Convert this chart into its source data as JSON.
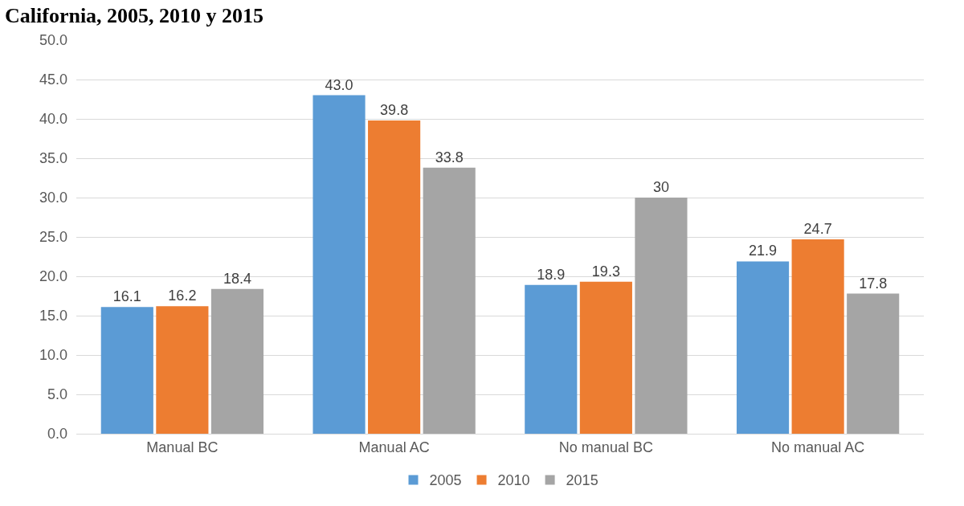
{
  "chart_data": {
    "type": "bar",
    "title": "California, 2005, 2010 y 2015",
    "categories": [
      "Manual BC",
      "Manual AC",
      "No manual BC",
      "No manual AC"
    ],
    "series": [
      {
        "name": "2005",
        "color": "#5b9bd5",
        "values": [
          16.1,
          43.0,
          18.9,
          21.9
        ],
        "value_labels": [
          "16.1",
          "43.0",
          "18.9",
          "21.9"
        ]
      },
      {
        "name": "2010",
        "color": "#ed7d31",
        "values": [
          16.2,
          39.8,
          19.3,
          24.7
        ],
        "value_labels": [
          "16.2",
          "39.8",
          "19.3",
          "24.7"
        ]
      },
      {
        "name": "2015",
        "color": "#a5a5a5",
        "values": [
          18.4,
          33.8,
          30,
          17.8
        ],
        "value_labels": [
          "18.4",
          "33.8",
          "30",
          "17.8"
        ]
      }
    ],
    "ylim": [
      0,
      50
    ],
    "yticks": [
      {
        "value": 0,
        "label": "0.0"
      },
      {
        "value": 5,
        "label": "5.0"
      },
      {
        "value": 10,
        "label": "10.0"
      },
      {
        "value": 15,
        "label": "15.0"
      },
      {
        "value": 20,
        "label": "20.0"
      },
      {
        "value": 25,
        "label": "25.0"
      },
      {
        "value": 30,
        "label": "30.0"
      },
      {
        "value": 35,
        "label": "35.0"
      },
      {
        "value": 40,
        "label": "40.0"
      },
      {
        "value": 45,
        "label": "45.0"
      },
      {
        "value": 50,
        "label": "50.0"
      }
    ],
    "grid": "y",
    "legend": "bottom"
  }
}
